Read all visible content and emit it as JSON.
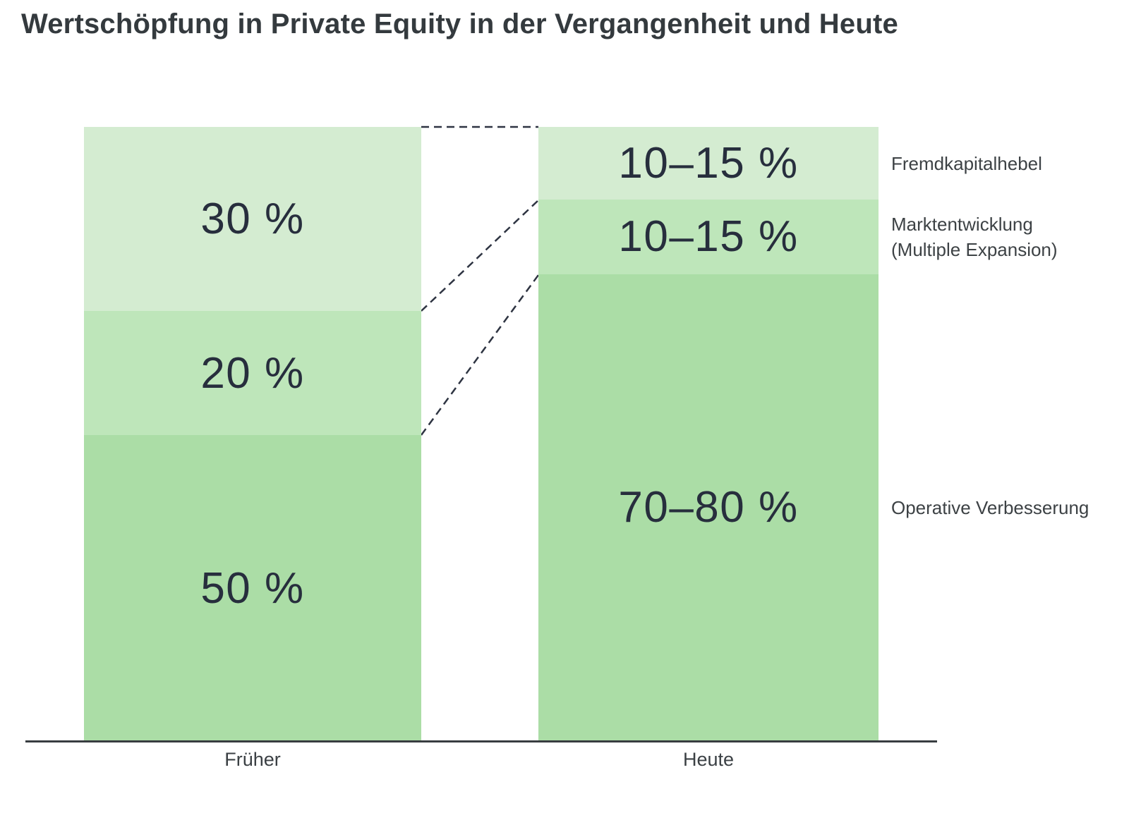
{
  "title": "Wertschöpfung in Private Equity in der Vergangenheit und Heute",
  "colors": {
    "background": "#ffffff",
    "segment_light": "#d4ecd1",
    "segment_medium": "#bee6ba",
    "segment_dark": "#abdda6",
    "value_text": "#272e3d",
    "side_label_text": "#3d4245",
    "axis_line": "#383d41",
    "connector": "#2e3442"
  },
  "chart_data": {
    "type": "bar",
    "subtype": "stacked-comparison",
    "title": "Wertschöpfung in Private Equity in der Vergangenheit und Heute",
    "categories": [
      "Früher",
      "Heute"
    ],
    "series": [
      {
        "name": "Fremdkapitalhebel",
        "labels": [
          "30 %",
          "10–15 %"
        ],
        "draw_pct": [
          30.0,
          11.8
        ]
      },
      {
        "name": "Marktentwicklung (Multiple Expansion)",
        "labels": [
          "20 %",
          "10–15 %"
        ],
        "draw_pct": [
          20.2,
          12.2
        ]
      },
      {
        "name": "Operative Verbesserung",
        "labels": [
          "50 %",
          "70–80 %"
        ],
        "draw_pct": [
          49.8,
          76.0
        ]
      }
    ],
    "legend_position": "right",
    "grid": false,
    "connectors": "dashed lines link segment boundaries between the two bars"
  },
  "bars": {
    "early": {
      "axis_label": "Früher",
      "seg1_text": "30 %",
      "seg2_text": "20 %",
      "seg3_text": "50 %"
    },
    "today": {
      "axis_label": "Heute",
      "seg1_text": "10–15 %",
      "seg2_text": "10–15 %",
      "seg3_text": "70–80 %"
    }
  },
  "side_labels": {
    "leverage": {
      "line1": "Fremdkapitalhebel"
    },
    "market": {
      "line1": "Marktentwicklung",
      "line2": "(Multiple Expansion)"
    },
    "operational": {
      "line1": "Operative Verbesserung"
    }
  }
}
